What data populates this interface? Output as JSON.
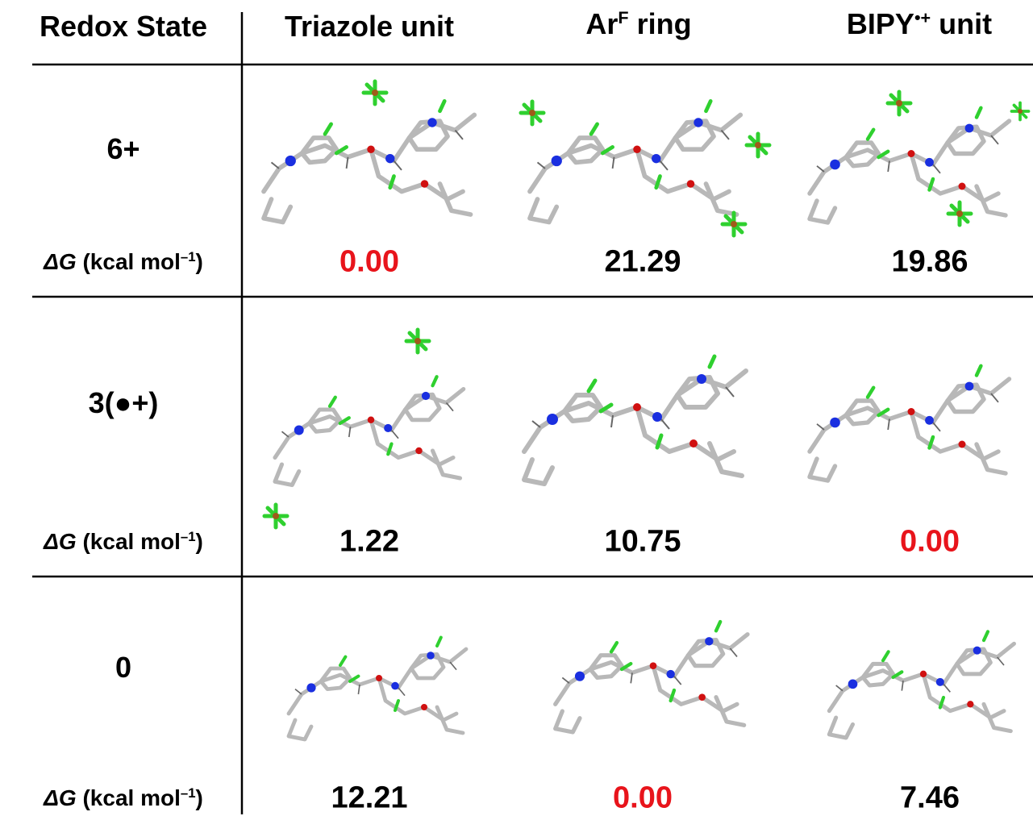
{
  "table": {
    "header": [
      {
        "text": "Redox State"
      },
      {
        "text": "Triazole unit"
      },
      {
        "base": "Ar",
        "sup": "F",
        "rest": " ring"
      },
      {
        "base": "BIPY",
        "sup": "•+",
        "rest": " unit"
      }
    ],
    "rows": [
      {
        "state": "6+",
        "label": {
          "italic": "ΔG",
          "text": " (kcal mol",
          "sup": "–1",
          "close": ")"
        },
        "values": [
          {
            "text": "0.00",
            "color": "#e8141b"
          },
          {
            "text": "21.29",
            "color": "#000000"
          },
          {
            "text": "19.86",
            "color": "#000000"
          }
        ]
      },
      {
        "state": "3(●+)",
        "label": {
          "italic": "ΔG",
          "text": " (kcal mol",
          "sup": "–1",
          "close": ")"
        },
        "values": [
          {
            "text": "1.22",
            "color": "#000000"
          },
          {
            "text": "10.75",
            "color": "#000000"
          },
          {
            "text": "0.00",
            "color": "#e8141b"
          }
        ]
      },
      {
        "state": "0",
        "label": {
          "italic": "ΔG",
          "text": " (kcal mol",
          "sup": "–1",
          "close": ")"
        },
        "values": [
          {
            "text": "12.21",
            "color": "#000000"
          },
          {
            "text": "0.00",
            "color": "#e8141b"
          },
          {
            "text": "7.46",
            "color": "#000000"
          }
        ]
      }
    ]
  }
}
